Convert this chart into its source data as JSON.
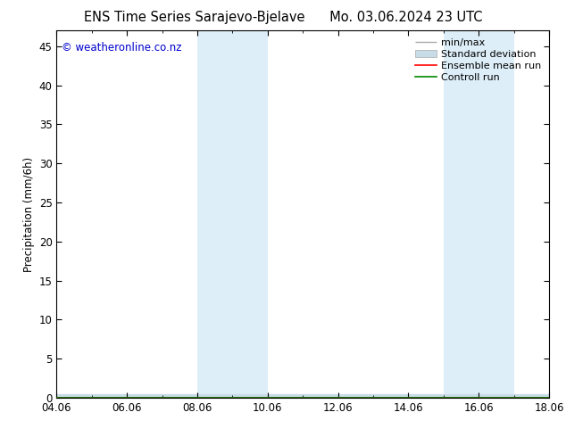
{
  "title": "ENS Time Series Sarajevo-Bjelave      Mo. 03.06.2024 23 UTC",
  "title_left": "ENS Time Series Sarajevo-Bjelave",
  "title_right": "Mo. 03.06.2024 23 UTC",
  "ylabel": "Precipitation (mm/6h)",
  "ylim": [
    0,
    47
  ],
  "yticks": [
    0,
    5,
    10,
    15,
    20,
    25,
    30,
    35,
    40,
    45
  ],
  "xtick_labels": [
    "04.06",
    "06.06",
    "08.06",
    "10.06",
    "12.06",
    "14.06",
    "16.06",
    "18.06"
  ],
  "xtick_positions": [
    0,
    2,
    4,
    6,
    8,
    10,
    12,
    14
  ],
  "xlim": [
    0,
    14
  ],
  "shaded_bands": [
    {
      "x_start": 4,
      "x_end": 6
    },
    {
      "x_start": 11,
      "x_end": 13
    }
  ],
  "shaded_color": "#ddeef8",
  "watermark_text": "© weatheronline.co.nz",
  "watermark_color": "#0000cc",
  "legend_items": [
    {
      "label": "min/max",
      "color": "#aaaaaa",
      "lw": 1.0
    },
    {
      "label": "Standard deviation",
      "color": "#c8dce8",
      "lw": 6
    },
    {
      "label": "Ensemble mean run",
      "color": "#ff0000",
      "lw": 1.2
    },
    {
      "label": "Controll run",
      "color": "#008800",
      "lw": 1.2
    }
  ],
  "background_color": "#ffffff",
  "title_fontsize": 10.5,
  "tick_fontsize": 8.5,
  "ylabel_fontsize": 8.5,
  "watermark_fontsize": 8.5,
  "legend_fontsize": 8.0
}
